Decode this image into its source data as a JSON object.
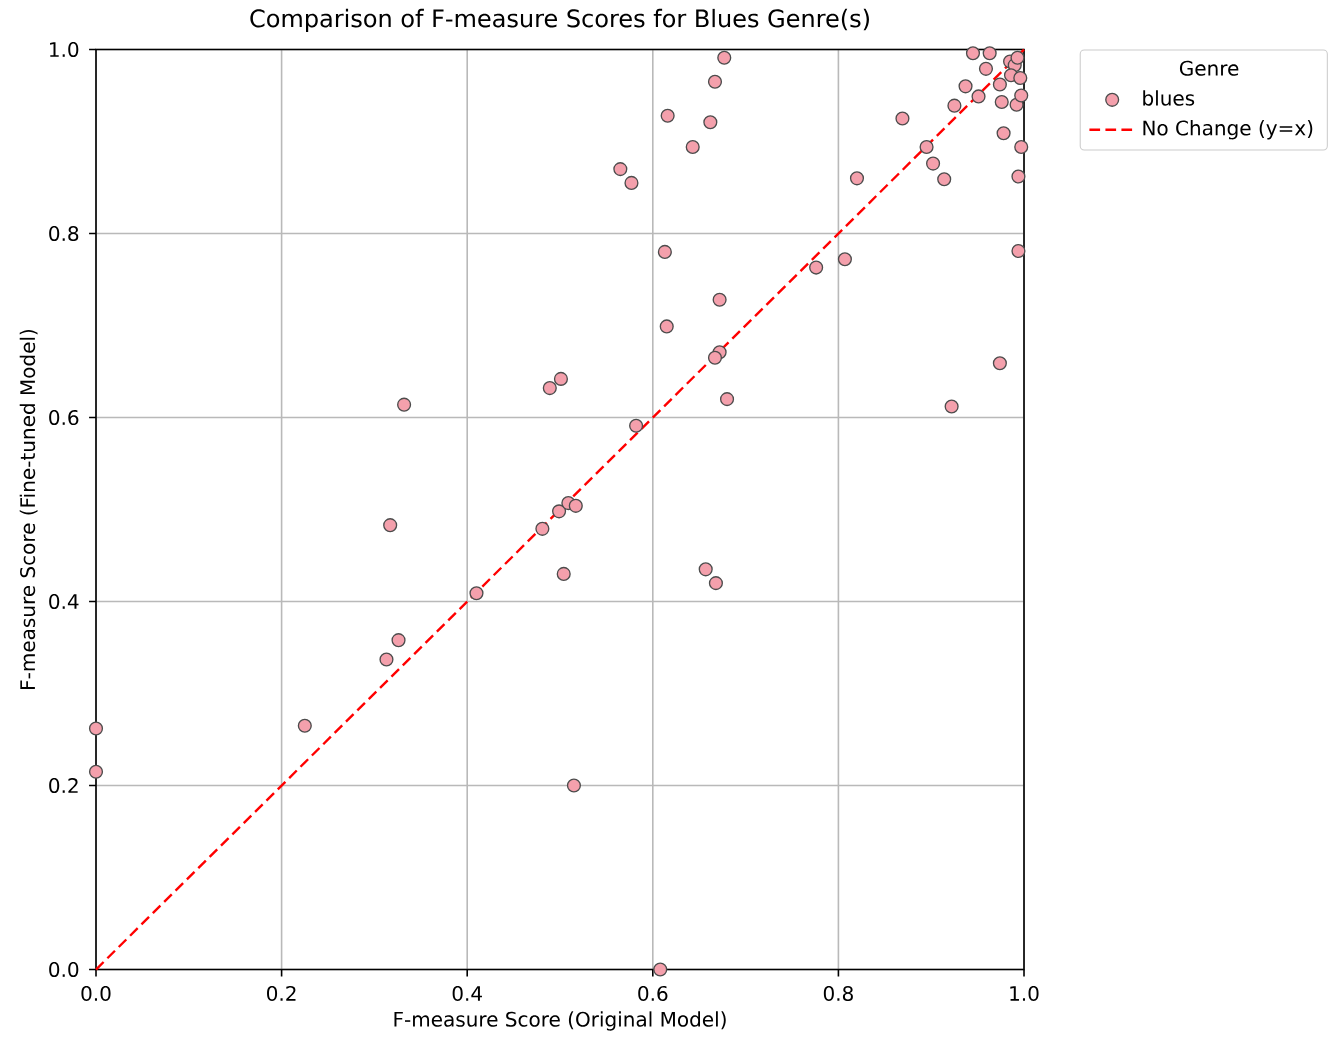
{
  "chart_data": {
    "type": "scatter",
    "title": "Comparison of F-measure Scores for Blues Genre(s)",
    "xlabel": "F-measure Score (Original Model)",
    "ylabel": "F-measure Score (Fine-tuned Model)",
    "legend_title": "Genre",
    "xlim": [
      0,
      1
    ],
    "ylim": [
      0,
      1
    ],
    "xticks": [
      {
        "value": 0,
        "label": "0.0"
      },
      0.2,
      0.4,
      0.6,
      0.8,
      {
        "value": 1,
        "label": "1.0"
      }
    ],
    "yticks": [
      {
        "value": 0,
        "label": "0.0"
      },
      0.2,
      0.4,
      0.6,
      0.8,
      {
        "value": 1,
        "label": "1.0"
      }
    ],
    "grid": true,
    "legend": "top right",
    "series": [
      {
        "name": "blues",
        "marker": "circle",
        "color": "#f4a0ac",
        "x": [
          0.0,
          0.0,
          0.225,
          0.313,
          0.326,
          0.317,
          0.332,
          0.41,
          0.481,
          0.489,
          0.501,
          0.499,
          0.504,
          0.509,
          0.517,
          0.515,
          0.608,
          0.657,
          0.668,
          0.582,
          0.677,
          0.667,
          0.616,
          0.662,
          0.643,
          0.565,
          0.577,
          0.613,
          0.776,
          0.807,
          0.672,
          0.615,
          0.672,
          0.667,
          0.68,
          0.922,
          0.974,
          0.994,
          0.869,
          0.82,
          0.895,
          0.902,
          0.914,
          0.925,
          0.937,
          0.951,
          0.959,
          0.974,
          0.976,
          0.978,
          0.994,
          0.992,
          0.997,
          0.997,
          0.945,
          0.963,
          0.985,
          0.99,
          0.993,
          0.986,
          0.996
        ],
        "values": [
          0.262,
          0.215,
          0.265,
          0.337,
          0.358,
          0.483,
          0.614,
          0.409,
          0.479,
          0.632,
          0.642,
          0.498,
          0.43,
          0.507,
          0.504,
          0.2,
          0.0,
          0.435,
          0.42,
          0.591,
          0.991,
          0.965,
          0.928,
          0.921,
          0.894,
          0.87,
          0.855,
          0.78,
          0.763,
          0.772,
          0.728,
          0.699,
          0.671,
          0.665,
          0.62,
          0.612,
          0.659,
          0.781,
          0.925,
          0.86,
          0.894,
          0.876,
          0.859,
          0.939,
          0.96,
          0.949,
          0.979,
          0.962,
          0.943,
          0.909,
          0.862,
          0.94,
          0.95,
          0.894,
          0.996,
          0.996,
          0.987,
          0.983,
          0.991,
          0.972,
          0.969
        ]
      },
      {
        "name": "No Change (y=x)",
        "type": "line",
        "marker": "none",
        "color": "#ff0000",
        "line_style": "dashed",
        "x": [
          0,
          1
        ],
        "values": [
          0,
          1
        ]
      }
    ]
  }
}
